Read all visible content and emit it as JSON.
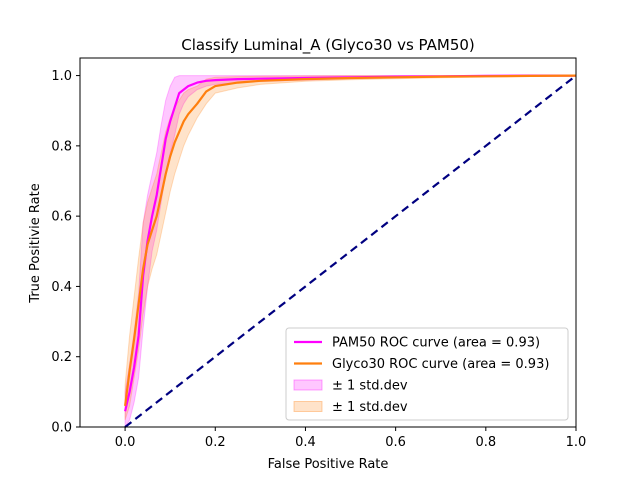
{
  "chart_data": {
    "type": "line",
    "title": "Classify Luminal_A (Glyco30 vs PAM50)",
    "xlabel": "False Positive Rate",
    "ylabel": "True Positivie Rate",
    "xlim": [
      -0.1,
      1.0
    ],
    "ylim": [
      0.0,
      1.05
    ],
    "x_ticks": [
      "0.0",
      "0.2",
      "0.4",
      "0.6",
      "0.8",
      "1.0"
    ],
    "y_ticks": [
      "0.0",
      "0.2",
      "0.4",
      "0.6",
      "0.8",
      "1.0"
    ],
    "grid": false,
    "legend_position": "lower-right",
    "series": [
      {
        "name": "PAM50 ROC curve (area = 0.93)",
        "color": "#ff00ff",
        "x": [
          0.0,
          0.01,
          0.02,
          0.03,
          0.04,
          0.05,
          0.06,
          0.07,
          0.08,
          0.09,
          0.1,
          0.11,
          0.12,
          0.13,
          0.14,
          0.16,
          0.18,
          0.2,
          0.25,
          0.3,
          0.4,
          0.5,
          0.6,
          0.7,
          0.8,
          0.9,
          1.0
        ],
        "y": [
          0.045,
          0.1,
          0.17,
          0.26,
          0.43,
          0.53,
          0.6,
          0.66,
          0.74,
          0.82,
          0.87,
          0.91,
          0.95,
          0.96,
          0.97,
          0.98,
          0.985,
          0.987,
          0.99,
          0.991,
          0.993,
          0.995,
          0.997,
          0.998,
          0.999,
          1.0,
          1.0
        ],
        "std_band": {
          "name": "± 1 std.dev",
          "color": "#ff00ff",
          "lower": [
            0.0,
            0.02,
            0.07,
            0.14,
            0.28,
            0.4,
            0.5,
            0.56,
            0.64,
            0.72,
            0.78,
            0.83,
            0.89,
            0.92,
            0.94,
            0.96,
            0.97,
            0.975,
            0.98,
            0.983,
            0.987,
            0.991,
            0.994,
            0.996,
            0.998,
            0.999,
            1.0
          ],
          "upper": [
            0.1,
            0.18,
            0.27,
            0.38,
            0.58,
            0.66,
            0.72,
            0.78,
            0.86,
            0.93,
            0.97,
            0.995,
            1.0,
            1.0,
            1.0,
            1.0,
            1.0,
            1.0,
            1.0,
            1.0,
            1.0,
            1.0,
            1.0,
            1.0,
            1.0,
            1.0,
            1.0
          ]
        }
      },
      {
        "name": "Glyco30 ROC curve (area = 0.93)",
        "color": "#ff7f0e",
        "x": [
          0.0,
          0.01,
          0.02,
          0.03,
          0.04,
          0.05,
          0.06,
          0.07,
          0.08,
          0.09,
          0.1,
          0.11,
          0.12,
          0.13,
          0.14,
          0.16,
          0.18,
          0.2,
          0.25,
          0.3,
          0.4,
          0.5,
          0.6,
          0.7,
          0.8,
          0.9,
          1.0
        ],
        "y": [
          0.06,
          0.16,
          0.25,
          0.35,
          0.45,
          0.52,
          0.56,
          0.6,
          0.66,
          0.72,
          0.77,
          0.81,
          0.84,
          0.87,
          0.89,
          0.92,
          0.955,
          0.97,
          0.98,
          0.985,
          0.99,
          0.993,
          0.995,
          0.997,
          0.998,
          0.999,
          1.0
        ],
        "std_band": {
          "name": "± 1 std.dev",
          "color": "#ff7f0e",
          "lower": [
            0.02,
            0.06,
            0.14,
            0.22,
            0.32,
            0.4,
            0.45,
            0.49,
            0.55,
            0.61,
            0.67,
            0.72,
            0.76,
            0.8,
            0.83,
            0.88,
            0.92,
            0.95,
            0.965,
            0.975,
            0.984,
            0.988,
            0.991,
            0.994,
            0.996,
            0.998,
            1.0
          ],
          "upper": [
            0.12,
            0.26,
            0.37,
            0.48,
            0.58,
            0.64,
            0.68,
            0.72,
            0.78,
            0.84,
            0.88,
            0.91,
            0.93,
            0.95,
            0.96,
            0.97,
            0.99,
            0.995,
            0.997,
            0.998,
            0.999,
            1.0,
            1.0,
            1.0,
            1.0,
            1.0,
            1.0
          ]
        }
      },
      {
        "name": "",
        "color": "#000080",
        "line_style": "dashed",
        "x": [
          0.0,
          1.0
        ],
        "y": [
          0.0,
          1.0
        ]
      }
    ],
    "legend": [
      {
        "label": "PAM50 ROC curve (area = 0.93)",
        "kind": "line",
        "color": "#ff00ff"
      },
      {
        "label": "Glyco30 ROC curve (area = 0.93)",
        "kind": "line",
        "color": "#ff7f0e"
      },
      {
        "label": "± 1 std.dev",
        "kind": "band",
        "color": "#ff00ff"
      },
      {
        "label": "± 1 std.dev",
        "kind": "band",
        "color": "#ff7f0e"
      }
    ]
  }
}
